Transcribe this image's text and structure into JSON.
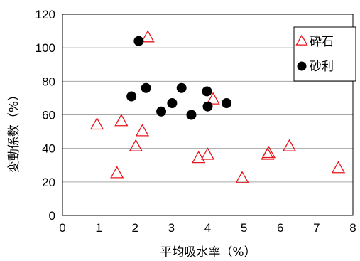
{
  "chart_data": {
    "type": "scatter",
    "title": "",
    "xlabel": "平均吸水率（%）",
    "ylabel": "変動係数（%）",
    "xlim": [
      0,
      8
    ],
    "ylim": [
      0,
      120
    ],
    "x_ticks": [
      "0",
      "1",
      "2",
      "3",
      "4",
      "5",
      "6",
      "7",
      "8"
    ],
    "y_ticks": [
      "0",
      "20",
      "40",
      "60",
      "80",
      "100",
      "120"
    ],
    "grid": "horizontal",
    "legend_position": "top-right",
    "series": [
      {
        "name": "砕石",
        "marker": "open-triangle",
        "color": "#e8141b",
        "points": [
          {
            "x": 0.95,
            "y": 54
          },
          {
            "x": 1.5,
            "y": 25
          },
          {
            "x": 1.62,
            "y": 56
          },
          {
            "x": 2.02,
            "y": 41
          },
          {
            "x": 2.2,
            "y": 50
          },
          {
            "x": 2.35,
            "y": 106
          },
          {
            "x": 3.75,
            "y": 34
          },
          {
            "x": 4.0,
            "y": 36
          },
          {
            "x": 4.15,
            "y": 69
          },
          {
            "x": 4.95,
            "y": 22
          },
          {
            "x": 5.65,
            "y": 36
          },
          {
            "x": 5.68,
            "y": 37
          },
          {
            "x": 6.25,
            "y": 41
          },
          {
            "x": 7.6,
            "y": 28
          }
        ]
      },
      {
        "name": "砂利",
        "marker": "filled-circle",
        "color": "#000000",
        "points": [
          {
            "x": 1.9,
            "y": 71
          },
          {
            "x": 2.1,
            "y": 104
          },
          {
            "x": 2.3,
            "y": 76
          },
          {
            "x": 2.72,
            "y": 62
          },
          {
            "x": 3.02,
            "y": 67
          },
          {
            "x": 3.28,
            "y": 76
          },
          {
            "x": 3.55,
            "y": 60
          },
          {
            "x": 3.98,
            "y": 74
          },
          {
            "x": 4.0,
            "y": 65
          },
          {
            "x": 4.52,
            "y": 67
          }
        ]
      }
    ]
  }
}
